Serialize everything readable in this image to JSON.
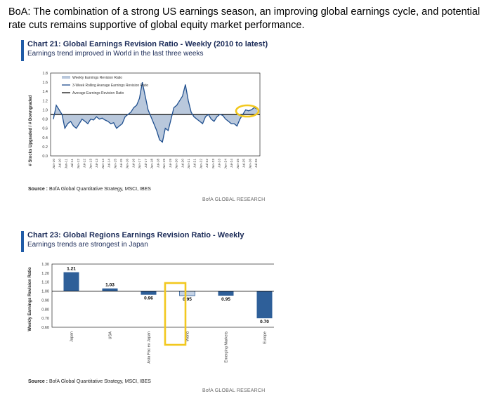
{
  "headline": "BoA: The combination of a strong US earnings season, an improving global earnings  cycle, and potential rate cuts remains supportive of global equity market performance.",
  "chart21": {
    "title": "Chart 21: Global Earnings Revision Ratio - Weekly (2010 to latest)",
    "subtitle": "Earnings trend improved in World in the last three weeks",
    "ylabel": "# Stocks Upgraded / # Downgraded",
    "source_label": "Source :",
    "source_text": "BofA Global Quantitative Strategy, MSCI, IBES",
    "credit": "BofA GLOBAL RESEARCH",
    "legend": [
      "Weekly Earnings Revision Ratio",
      "3-Week Rolling Average Earnings Revision Ratio",
      "Average Earnings Revision Ratio"
    ]
  },
  "chart23": {
    "title": "Chart 23: Global Regions Earnings Revision Ratio - Weekly",
    "subtitle": "Earnings trends are strongest in Japan",
    "ylabel": "Weekly Earnings Revision Ratio",
    "source_label": "Source :",
    "source_text": "BofA Global Quantitative Strategy, MSCI, IBES",
    "credit": "BofA GLOBAL RESEARCH"
  },
  "chart_data": [
    {
      "type": "line",
      "title": "Chart 21: Global Earnings Revision Ratio - Weekly (2010 to latest)",
      "ylabel": "# Stocks Upgraded / # Downgraded",
      "ylim": [
        0,
        1.8
      ],
      "yticks": [
        "0.0",
        "0.2",
        "0.4",
        "0.6",
        "0.8",
        "1.0",
        "1.2",
        "1.4",
        "1.6",
        "1.8"
      ],
      "xticks": [
        "Jan-10",
        "Jul-10",
        "Jan-11",
        "Jul-11",
        "Jan-12",
        "Jul-12",
        "Jan-13",
        "Jul-13",
        "Jan-14",
        "Jul-14",
        "Jan-15",
        "Jul-15",
        "Jan-16",
        "Jul-16",
        "Jan-17",
        "Jul-17",
        "Jan-18",
        "Jul-18",
        "Jan-19",
        "Jul-19",
        "Jan-20",
        "Jul-20",
        "Jan-21",
        "Jul-21",
        "Jan-22",
        "Jul-22",
        "Jan-23",
        "Jul-23",
        "Jan-24",
        "Jul-24",
        "Jan-25",
        "Jul-25",
        "Jan-26",
        "Jul-26"
      ],
      "average": 0.9,
      "series": [
        {
          "name": "Weekly Earnings Revision Ratio",
          "style": "area",
          "color": "#b9c8dc"
        },
        {
          "name": "3-Week Rolling Average Earnings Revision Ratio",
          "style": "line",
          "color": "#1f4f8f",
          "values": [
            0.8,
            1.1,
            1.0,
            0.9,
            0.6,
            0.7,
            0.75,
            0.65,
            0.6,
            0.7,
            0.8,
            0.75,
            0.7,
            0.8,
            0.78,
            0.85,
            0.8,
            0.82,
            0.78,
            0.75,
            0.7,
            0.72,
            0.6,
            0.65,
            0.7,
            0.85,
            0.9,
            0.95,
            1.05,
            1.1,
            1.25,
            1.6,
            1.3,
            1.0,
            0.85,
            0.7,
            0.55,
            0.35,
            0.3,
            0.6,
            0.55,
            0.8,
            1.05,
            1.1,
            1.2,
            1.3,
            1.55,
            1.2,
            0.95,
            0.85,
            0.8,
            0.75,
            0.7,
            0.85,
            0.9,
            0.8,
            0.75,
            0.85,
            0.9,
            0.88,
            0.8,
            0.75,
            0.7,
            0.7,
            0.65,
            0.8,
            0.9,
            1.0,
            0.98,
            1.0,
            1.05,
            1.02
          ]
        },
        {
          "name": "Average Earnings Revision Ratio",
          "style": "line",
          "color": "#000000"
        }
      ],
      "annotation": "latest values highlighted (~1.0)"
    },
    {
      "type": "bar",
      "title": "Chart 23: Global Regions Earnings Revision Ratio - Weekly",
      "ylabel": "Weekly Earnings Revision Ratio",
      "ylim": [
        0.6,
        1.3
      ],
      "yticks": [
        "0.60",
        "0.70",
        "0.80",
        "0.90",
        "1.00",
        "1.10",
        "1.20",
        "1.30"
      ],
      "baseline": 1.0,
      "categories": [
        "Japan",
        "USA",
        "Asia Pac ex Japan",
        "World",
        "Emerging Markets",
        "Europe"
      ],
      "values": [
        1.21,
        1.03,
        0.96,
        0.95,
        0.95,
        0.7
      ],
      "labels": [
        "1.21",
        "1.03",
        "0.96",
        "0.95",
        "0.95",
        "0.70"
      ],
      "highlight": "World"
    }
  ]
}
